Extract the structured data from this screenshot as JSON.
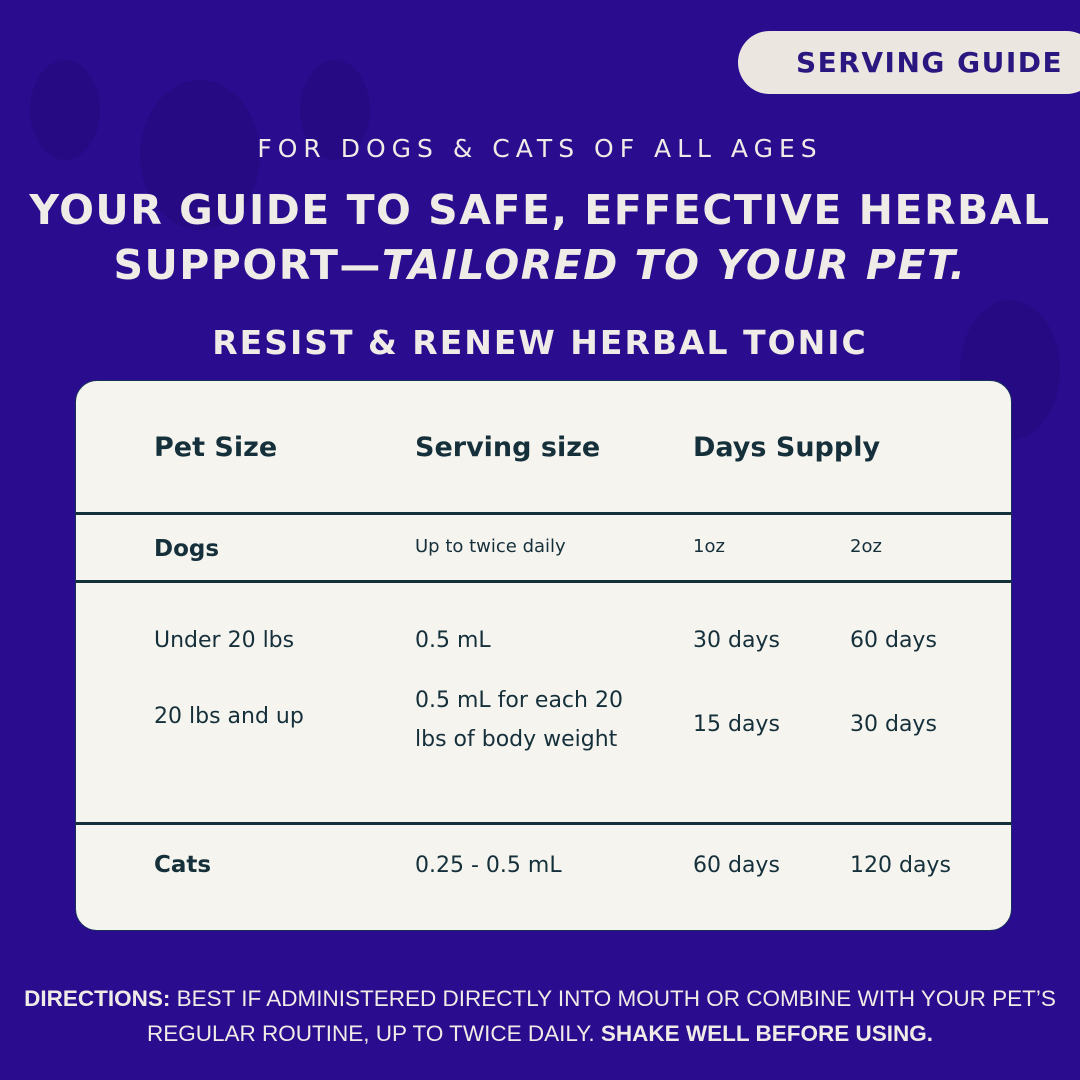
{
  "badge": {
    "label": "SERVING GUIDE"
  },
  "subtitle": "FOR DOGS & CATS OF ALL AGES",
  "headline": {
    "line1": "YOUR GUIDE TO SAFE, EFFECTIVE HERBAL",
    "line2_plain": "SUPPORT—",
    "line2_italic": "TAILORED TO YOUR PET."
  },
  "product_name": "RESIST & RENEW HERBAL TONIC",
  "table": {
    "headers": [
      "Pet Size",
      "Serving size",
      "Days Supply"
    ],
    "dogs": {
      "label": "Dogs",
      "serving": "Up to twice daily",
      "col1": "1oz",
      "col2": "2oz"
    },
    "rows": [
      {
        "size": "Under 20 lbs",
        "serving": "0.5 mL",
        "oz1": "30 days",
        "oz2": "60 days"
      },
      {
        "size": "20 lbs and up",
        "serving": "0.5 mL for each 20 lbs of body weight",
        "oz1": "15 days",
        "oz2": "30 days"
      }
    ],
    "cats": {
      "label": "Cats",
      "serving": "0.25 - 0.5 mL",
      "oz1": "60 days",
      "oz2": "120 days"
    }
  },
  "directions": {
    "lead": "DIRECTIONS:",
    "body": " BEST IF ADMINISTERED DIRECTLY INTO MOUTH OR COMBINE WITH YOUR PET’S REGULAR ROUTINE, UP TO TWICE DAILY. ",
    "emphasis": "SHAKE WELL BEFORE USING."
  },
  "colors": {
    "background": "#2a0c8e",
    "card": "#f5f4ef",
    "text_dark": "#15303a",
    "badge_bg": "#ece6e0"
  }
}
